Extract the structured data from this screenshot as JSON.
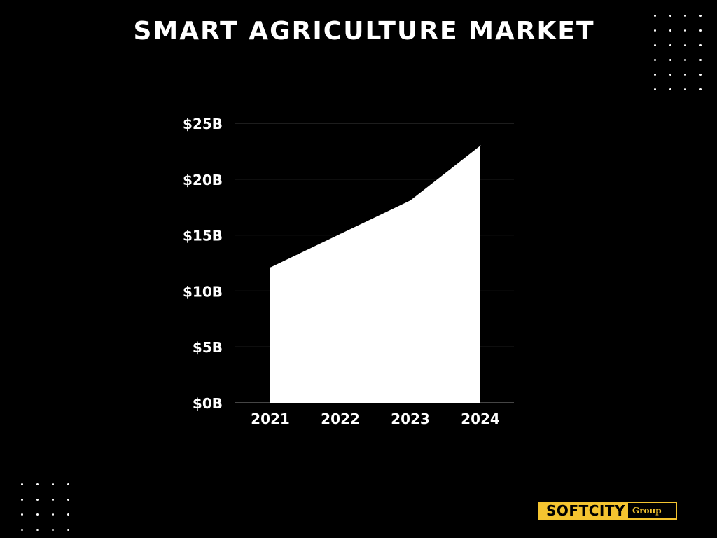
{
  "page": {
    "title": "SMART AGRICULTURE MARKET"
  },
  "logo": {
    "main_text": "SOFTCITY",
    "sub_text": "Group",
    "accent_color": "#f4c430"
  },
  "colors": {
    "background": "#000000",
    "foreground": "#ffffff",
    "gridline": "#3a3a3a"
  },
  "chart_data": {
    "type": "area",
    "title": "SMART AGRICULTURE MARKET",
    "xlabel": "",
    "ylabel": "",
    "categories": [
      "2021",
      "2022",
      "2023",
      "2024"
    ],
    "series": [
      {
        "values": [
          12.1,
          15.1,
          18.1,
          23
        ]
      }
    ],
    "ylim": [
      0,
      25
    ],
    "yticks": [
      0,
      5,
      10,
      15,
      20,
      25
    ],
    "ytick_labels": [
      "$0B",
      "$5B",
      "$10B",
      "$15B",
      "$20B",
      "$25B"
    ],
    "grid": true,
    "legend": "none",
    "fill_color": "#ffffff"
  }
}
